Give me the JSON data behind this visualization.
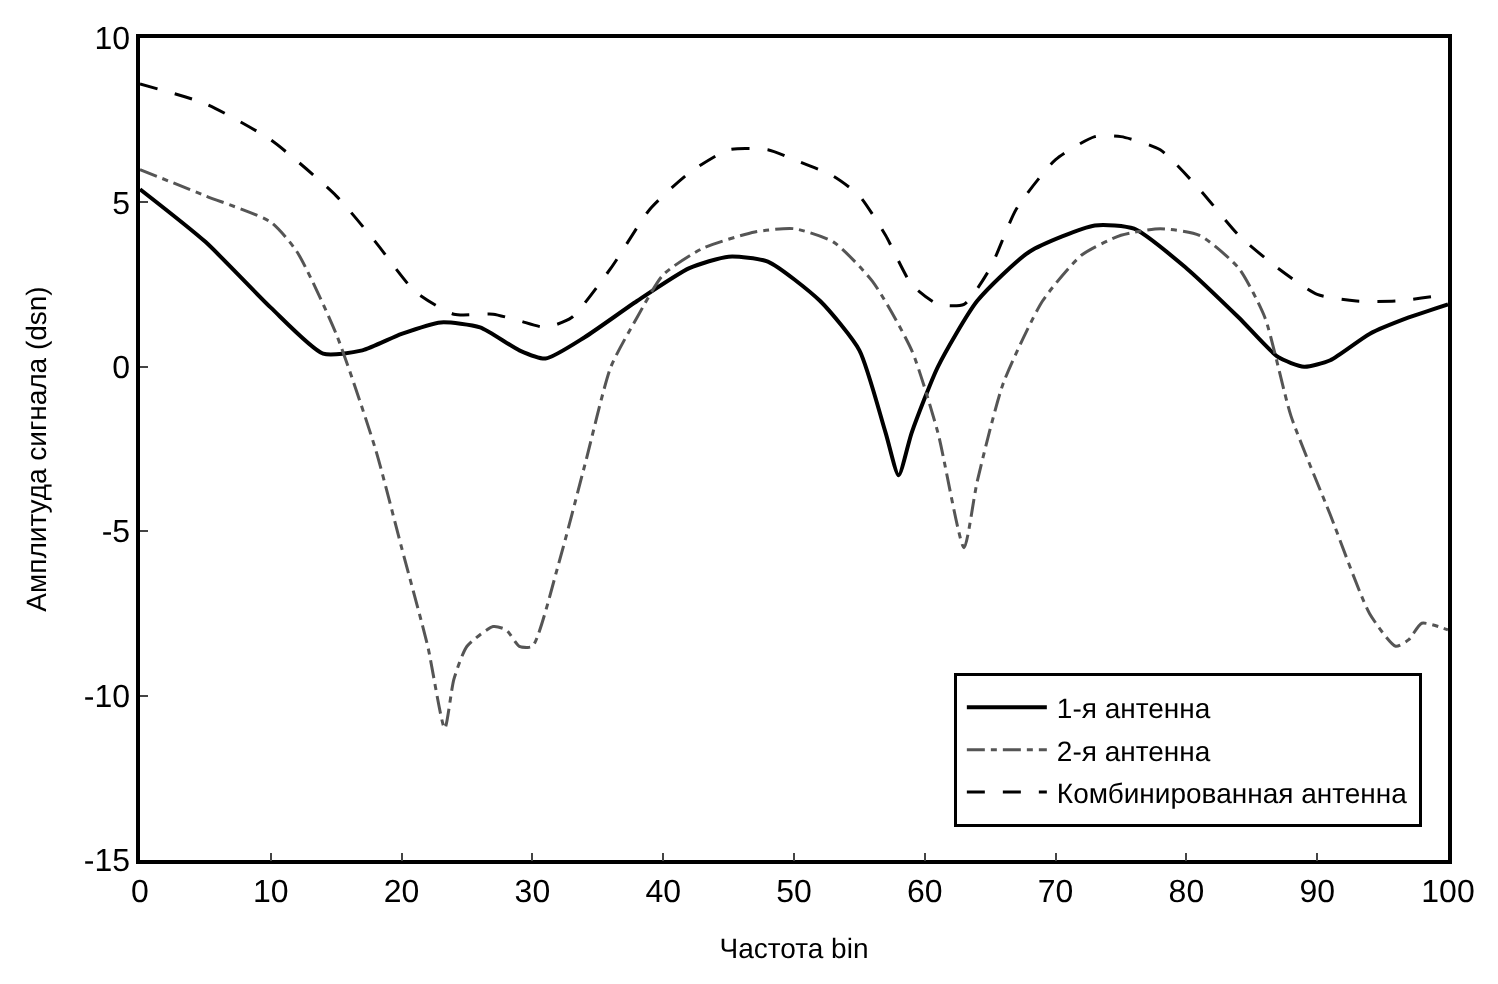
{
  "chart_data": {
    "type": "line",
    "xlabel": "Частота bin",
    "ylabel": "Амплитуда сигнала (dsn)",
    "xlim": [
      0,
      100
    ],
    "xticks": [
      0,
      10,
      20,
      30,
      40,
      50,
      60,
      70,
      80,
      90,
      100
    ],
    "ylim": [
      -15,
      10
    ],
    "yticks": [
      -15,
      -10,
      -5,
      0,
      5,
      10
    ],
    "legend": "bottom right",
    "marker": "none",
    "series": [
      {
        "name": "1-я антенна",
        "color": "#000000",
        "line_style": "solid",
        "x": [
          0,
          5,
          10,
          14,
          17,
          20,
          23,
          26,
          29,
          31,
          34,
          38,
          42,
          45,
          48,
          52,
          55,
          57,
          58,
          59,
          61,
          64,
          68,
          73,
          76,
          80,
          84,
          87,
          89,
          91,
          94,
          97,
          100
        ],
        "values": [
          5.4,
          3.8,
          1.8,
          0.4,
          0.5,
          1.0,
          1.35,
          1.2,
          0.5,
          0.25,
          0.9,
          2.0,
          3.0,
          3.35,
          3.2,
          2.0,
          0.5,
          -2.0,
          -3.3,
          -2.0,
          0.0,
          2.0,
          3.5,
          4.3,
          4.2,
          3.0,
          1.5,
          0.3,
          0.0,
          0.2,
          1.0,
          1.5,
          1.9
        ]
      },
      {
        "name": "2-я антенна",
        "color": "#555555",
        "line_style": "dashdot",
        "x": [
          0,
          5,
          10,
          12,
          15,
          18,
          20,
          22,
          23.3,
          24,
          25,
          27,
          28,
          29,
          30,
          32,
          34,
          36,
          38,
          40,
          43,
          47,
          50,
          53,
          56,
          59,
          61,
          63,
          64,
          66,
          69,
          72,
          75,
          78,
          81,
          84,
          86,
          88,
          91,
          94,
          96,
          97,
          98,
          100
        ],
        "values": [
          6.0,
          5.2,
          4.4,
          3.5,
          1.0,
          -2.5,
          -5.5,
          -8.5,
          -11.0,
          -9.5,
          -8.5,
          -7.9,
          -8.0,
          -8.5,
          -8.5,
          -6.0,
          -3.0,
          0.0,
          1.5,
          2.8,
          3.6,
          4.1,
          4.2,
          3.8,
          2.6,
          0.5,
          -2.0,
          -5.5,
          -3.5,
          -0.5,
          2.0,
          3.4,
          4.0,
          4.2,
          4.0,
          3.0,
          1.5,
          -1.5,
          -4.5,
          -7.5,
          -8.5,
          -8.3,
          -7.8,
          -8.0
        ]
      },
      {
        "name": "Комбинированная антенна",
        "color": "#000000",
        "line_style": "dashed",
        "x": [
          0,
          5,
          10,
          15,
          18,
          21,
          24,
          27,
          29,
          31,
          33,
          36,
          39,
          42,
          45,
          48,
          50,
          53,
          55,
          57,
          59,
          61,
          63,
          65,
          67,
          70,
          73,
          75,
          78,
          81,
          84,
          87,
          90,
          93,
          96,
          100
        ],
        "values": [
          8.6,
          8.0,
          6.9,
          5.2,
          3.8,
          2.3,
          1.6,
          1.6,
          1.4,
          1.2,
          1.5,
          3.0,
          4.8,
          5.9,
          6.6,
          6.6,
          6.3,
          5.8,
          5.2,
          4.0,
          2.5,
          1.9,
          1.9,
          3.0,
          4.8,
          6.3,
          7.0,
          7.0,
          6.6,
          5.4,
          4.0,
          3.0,
          2.2,
          2.0,
          2.0,
          2.2
        ]
      }
    ]
  }
}
